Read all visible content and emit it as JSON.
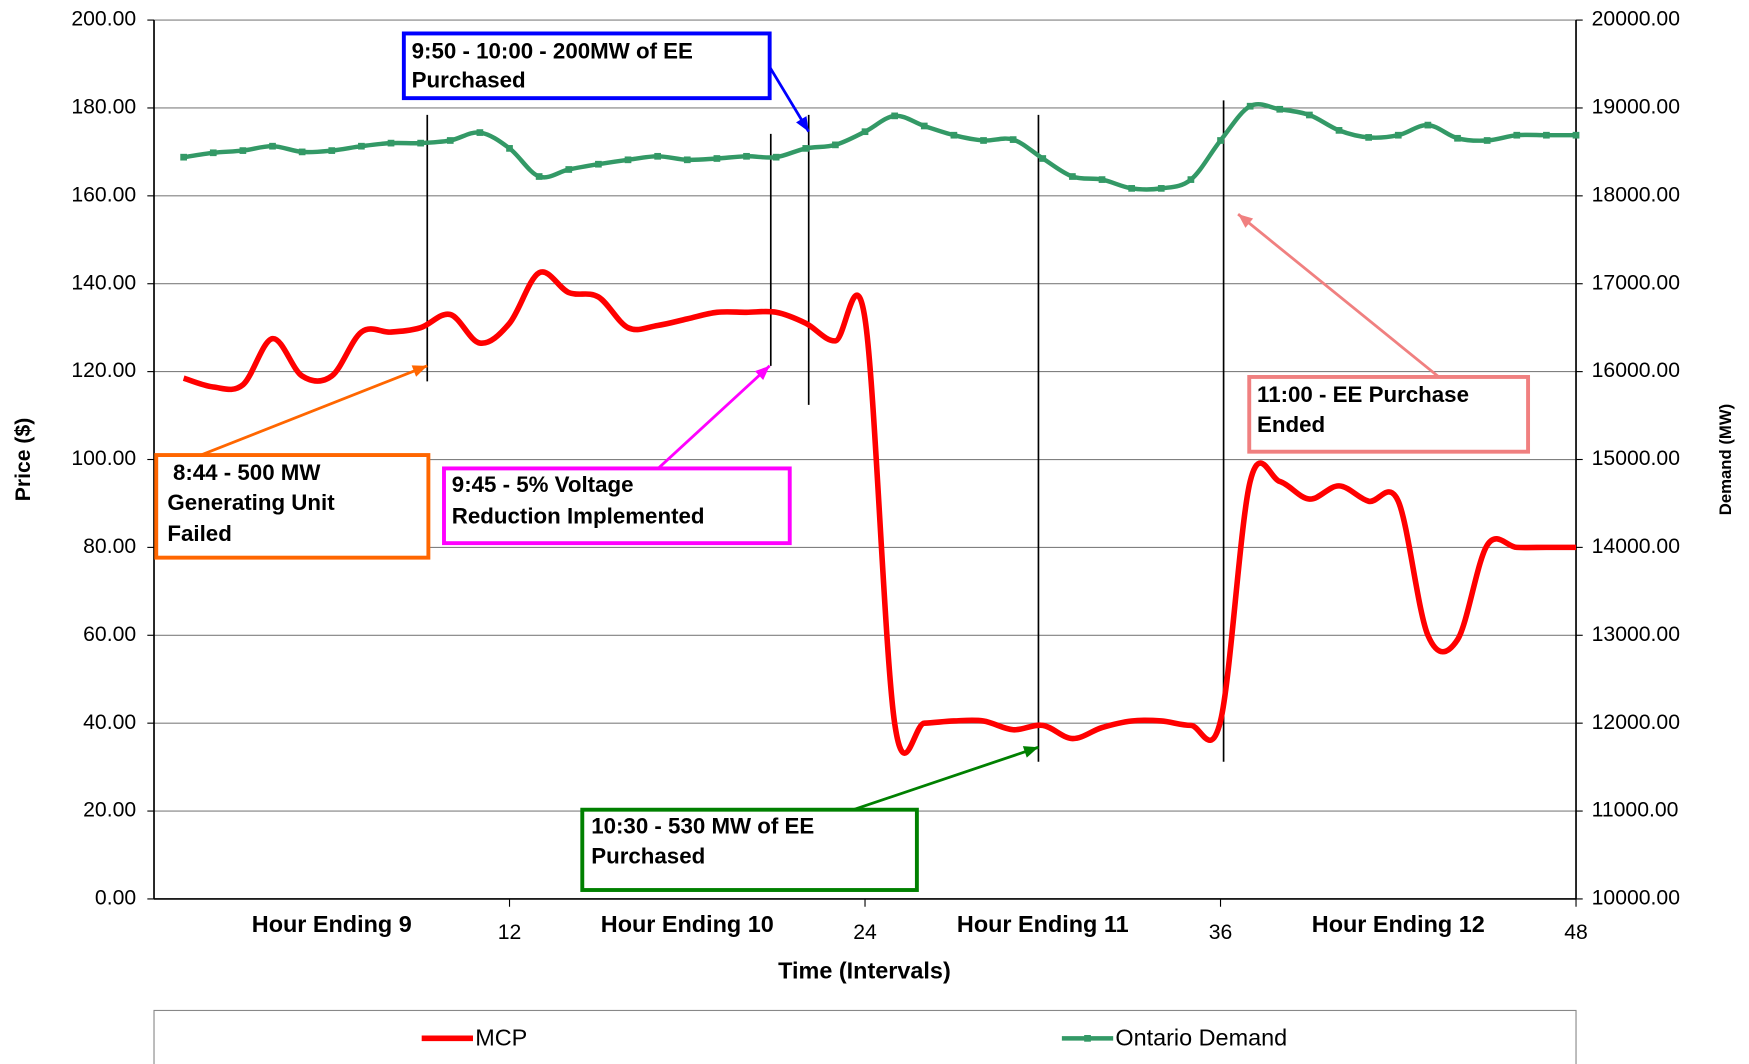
{
  "chart_data": {
    "type": "line",
    "xlabel": "Time (Intervals)",
    "ylabel": "Price ($)",
    "y2label": "Demand (MW)",
    "x": [
      1,
      2,
      3,
      4,
      5,
      6,
      7,
      8,
      9,
      10,
      11,
      12,
      13,
      14,
      15,
      16,
      17,
      18,
      19,
      20,
      21,
      22,
      23,
      24,
      25,
      26,
      27,
      28,
      29,
      30,
      31,
      32,
      33,
      34,
      35,
      36,
      37,
      38,
      39,
      40,
      41,
      42,
      43,
      44,
      45,
      46,
      47,
      48
    ],
    "series": [
      {
        "name": "MCP",
        "color": "#ff0000",
        "axis": "y",
        "marker": false,
        "values": [
          118.5,
          116.5,
          117,
          127.5,
          119,
          119,
          129,
          129,
          130,
          133,
          126.5,
          131,
          142.5,
          138,
          137,
          130,
          130.5,
          132,
          133.5,
          133.5,
          133.5,
          131,
          127,
          132,
          40,
          40,
          40.5,
          40.5,
          38.5,
          39.5,
          36.5,
          39,
          40.5,
          40.5,
          39.5,
          40.5,
          95,
          95,
          91,
          94,
          90.5,
          90.5,
          60,
          59,
          80.5,
          80,
          80,
          80
        ]
      },
      {
        "name": "Ontario Demand",
        "color": "#339966",
        "axis": "y2",
        "marker": true,
        "values": [
          18440,
          18490,
          18515,
          18565,
          18500,
          18515,
          18565,
          18600,
          18600,
          18630,
          18720,
          18540,
          18220,
          18300,
          18360,
          18410,
          18450,
          18410,
          18425,
          18450,
          18440,
          18540,
          18580,
          18730,
          18910,
          18795,
          18690,
          18630,
          18640,
          18425,
          18220,
          18185,
          18085,
          18085,
          18185,
          18630,
          19020,
          18985,
          18920,
          18745,
          18665,
          18690,
          18805,
          18655,
          18630,
          18690,
          18690,
          18690
        ]
      }
    ],
    "xlim": [
      0,
      48
    ],
    "xticks": [
      12,
      24,
      36,
      48
    ],
    "x_group_labels": [
      {
        "value": 6,
        "label": "Hour Ending 9"
      },
      {
        "value": 18,
        "label": "Hour Ending 10"
      },
      {
        "value": 30,
        "label": "Hour Ending 11"
      },
      {
        "value": 42,
        "label": "Hour Ending 12"
      }
    ],
    "ylim": [
      0,
      200
    ],
    "yticks": [
      {
        "value": 0,
        "label": "0.00"
      },
      {
        "value": 20,
        "label": "20.00"
      },
      {
        "value": 40,
        "label": "40.00"
      },
      {
        "value": 60,
        "label": "60.00"
      },
      {
        "value": 80,
        "label": "80.00"
      },
      {
        "value": 100,
        "label": "100.00"
      },
      {
        "value": 120,
        "label": "120.00"
      },
      {
        "value": 140,
        "label": "140.00"
      },
      {
        "value": 160,
        "label": "160.00"
      },
      {
        "value": 180,
        "label": "180.00"
      },
      {
        "value": 200,
        "label": "200.00"
      }
    ],
    "y2lim": [
      10000,
      20000
    ],
    "y2ticks": [
      {
        "value": 10000,
        "label": "10000.00"
      },
      {
        "value": 11000,
        "label": "11000.00"
      },
      {
        "value": 12000,
        "label": "12000.00"
      },
      {
        "value": 13000,
        "label": "13000.00"
      },
      {
        "value": 14000,
        "label": "14000.00"
      },
      {
        "value": 15000,
        "label": "15000.00"
      },
      {
        "value": 16000,
        "label": "16000.00"
      },
      {
        "value": 17000,
        "label": "17000.00"
      },
      {
        "value": 18000,
        "label": "18000.00"
      },
      {
        "value": 19000,
        "label": "19000.00"
      },
      {
        "value": 20000,
        "label": "20000.00"
      }
    ],
    "grid": true,
    "legend": "bottom",
    "annotations": [
      {
        "lines": [
          "8:44 - 500 MW",
          "Generating Unit",
          "Failed"
        ],
        "color": "#ff6600"
      },
      {
        "lines": [
          "9:45 - 5% Voltage",
          "Reduction Implemented"
        ],
        "color": "#ff00ff"
      },
      {
        "lines": [
          "9:50 - 10:00 - 200MW of EE",
          "Purchased"
        ],
        "color": "#0000ff"
      },
      {
        "lines": [
          "10:30 - 530 MW of EE",
          "Purchased"
        ],
        "color": "#008000"
      },
      {
        "lines": [
          "11:00 - EE Purchase",
          "Ended"
        ],
        "color": "#f08080"
      }
    ]
  }
}
